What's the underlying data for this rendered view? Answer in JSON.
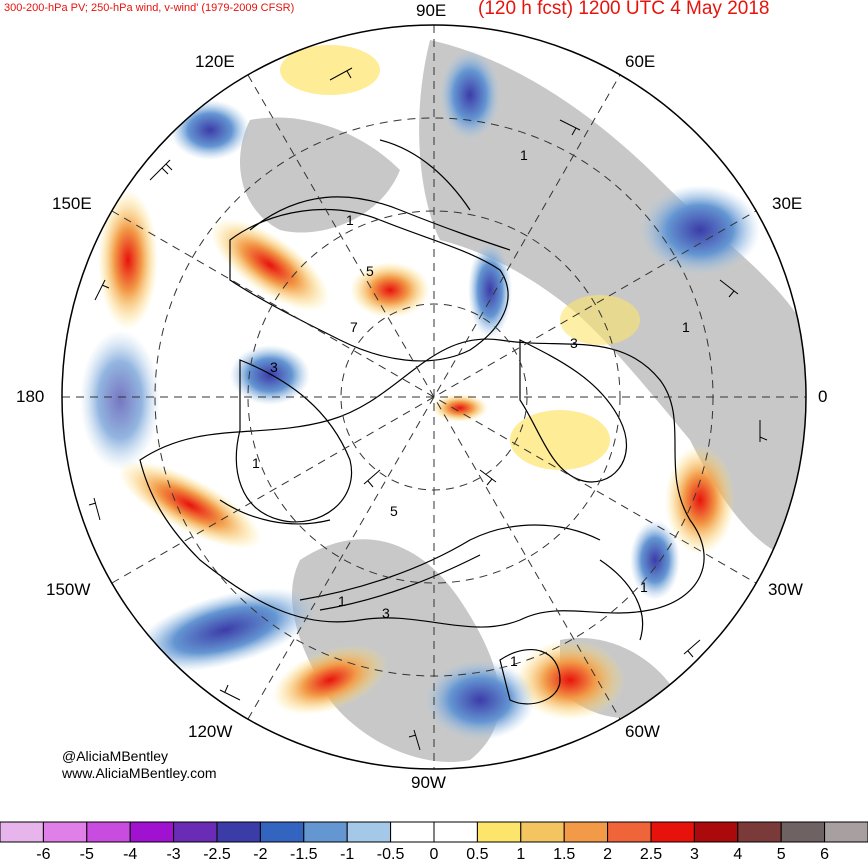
{
  "header": {
    "left_title": "300-200-hPa PV; 250-hPa wind, v-wind' (1979-2009 CFSR)",
    "right_title": "(120 h fcst) 1200 UTC 4 May 2018"
  },
  "longitude_labels": {
    "n90e": "90E",
    "n60e": "60E",
    "n120e": "120E",
    "n150e": "150E",
    "n30e": "30E",
    "n180": "180",
    "n0": "0",
    "n150w": "150W",
    "n30w": "30W",
    "n120w": "120W",
    "n60w": "60W",
    "n90w": "90W"
  },
  "contour_labels": [
    "1",
    "1",
    "1",
    "3",
    "7",
    "5",
    "1",
    "1",
    "3",
    "1",
    "3",
    "5",
    "1"
  ],
  "credits": {
    "handle": "@AliciaMBentley",
    "website": "www.AliciaMBentley.com"
  },
  "colorbar": {
    "labels": [
      "-6",
      "-5",
      "-4",
      "-3",
      "-2.5",
      "-2",
      "-1.5",
      "-1",
      "-0.5",
      "0",
      "0.5",
      "1",
      "1.5",
      "2",
      "2.5",
      "3",
      "4",
      "5",
      "6"
    ],
    "colors": [
      "#e8b4ec",
      "#e07fe8",
      "#c84ce0",
      "#a012d0",
      "#6a2cb4",
      "#3c3ca8",
      "#3264c0",
      "#6496d2",
      "#a4c8e8",
      "#ffffff",
      "#ffffff",
      "#fde46a",
      "#f4c460",
      "#f29a48",
      "#f0643a",
      "#e8120c",
      "#aa0a0c",
      "#7a3a3a",
      "#6e6262",
      "#a8a0a0"
    ]
  },
  "map_colors": {
    "land": "#c8c8c8",
    "ocean": "#ffffff",
    "positive_weak": "#fde46a",
    "positive_mid": "#f29a48",
    "positive_strong": "#e8120c",
    "negative_weak": "#a4c8e8",
    "negative_mid": "#6496d2",
    "negative_strong": "#3c3ca8"
  }
}
